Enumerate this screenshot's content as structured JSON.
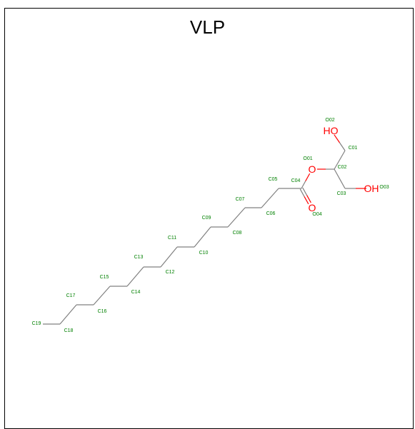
{
  "title": "VLP",
  "colors": {
    "bond": "#808080",
    "oxygen": "#ff0000",
    "atom_name": "#008000",
    "frame": "#000000"
  },
  "bonds": [
    [
      "C19",
      "C18"
    ],
    [
      "C18",
      "C17"
    ],
    [
      "C17",
      "C16"
    ],
    [
      "C16",
      "C15"
    ],
    [
      "C15",
      "C14"
    ],
    [
      "C14",
      "C13"
    ],
    [
      "C13",
      "C12"
    ],
    [
      "C12",
      "C11"
    ],
    [
      "C11",
      "C10"
    ],
    [
      "C10",
      "C09"
    ],
    [
      "C09",
      "C08"
    ],
    [
      "C08",
      "C07"
    ],
    [
      "C07",
      "C06"
    ],
    [
      "C06",
      "C05"
    ],
    [
      "C05",
      "C04"
    ],
    [
      "C04",
      "O01"
    ],
    [
      "O01",
      "C02"
    ],
    [
      "C02",
      "C01"
    ],
    [
      "C01",
      "O02"
    ],
    [
      "C02",
      "C03"
    ],
    [
      "C03",
      "O03"
    ]
  ],
  "double_bonds": [
    [
      "C04",
      "O04"
    ]
  ],
  "hetero_labels": [
    {
      "atom": "O01",
      "text": "O"
    },
    {
      "atom": "O02",
      "text": "HO"
    },
    {
      "atom": "O03",
      "text": "OH"
    },
    {
      "atom": "O04",
      "text": "O"
    }
  ],
  "atom_names": [
    {
      "atom": "O02",
      "text": "O02"
    },
    {
      "atom": "C01",
      "text": "C01"
    },
    {
      "atom": "O01",
      "text": "O01"
    },
    {
      "atom": "C02",
      "text": "C02"
    },
    {
      "atom": "C05",
      "text": "C05"
    },
    {
      "atom": "C04",
      "text": "C04"
    },
    {
      "atom": "O03",
      "text": "O03"
    },
    {
      "atom": "C03",
      "text": "C03"
    },
    {
      "atom": "C07",
      "text": "C07"
    },
    {
      "atom": "C06",
      "text": "C06"
    },
    {
      "atom": "O04",
      "text": "O04"
    },
    {
      "atom": "C09",
      "text": "C09"
    },
    {
      "atom": "C08",
      "text": "C08"
    },
    {
      "atom": "C11",
      "text": "C11"
    },
    {
      "atom": "C10",
      "text": "C10"
    },
    {
      "atom": "C13",
      "text": "C13"
    },
    {
      "atom": "C12",
      "text": "C12"
    },
    {
      "atom": "C15",
      "text": "C15"
    },
    {
      "atom": "C14",
      "text": "C14"
    },
    {
      "atom": "C17",
      "text": "C17"
    },
    {
      "atom": "C16",
      "text": "C16"
    },
    {
      "atom": "C19",
      "text": "C19"
    },
    {
      "atom": "C18",
      "text": "C18"
    }
  ]
}
